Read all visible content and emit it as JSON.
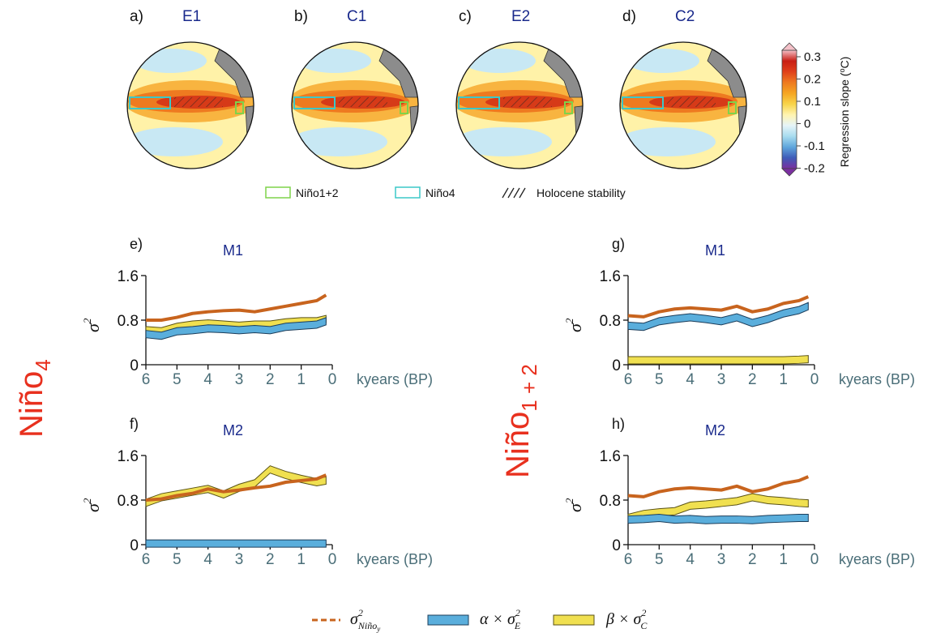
{
  "colors": {
    "niño": "#c8641e",
    "alpha_fill": "#5aaedc",
    "beta_fill": "#f0e050",
    "title_blue": "#1a2a8c",
    "region_label_red": "#e8301e",
    "axis_teal": "#4a6e78",
    "nino12_box": "#7fd34a",
    "nino4_box": "#3cc8c8"
  },
  "maps": [
    {
      "letter": "a)",
      "title": "E1"
    },
    {
      "letter": "b)",
      "title": "C1"
    },
    {
      "letter": "c)",
      "title": "E2"
    },
    {
      "letter": "d)",
      "title": "C2"
    }
  ],
  "colorbar": {
    "label": "Regression slope (",
    "label_unit": "C)",
    "label_sup": "o",
    "ticks": [
      "0.3",
      "0.2",
      "0.1",
      "0",
      "-0.1",
      "-0.2"
    ],
    "colors": [
      "#7b2fa0",
      "#3e5cb8",
      "#5fa6dc",
      "#a8dcef",
      "#e6f4f8",
      "#fff4b0",
      "#f8d44a",
      "#f5a623",
      "#ee7a20",
      "#e0401a",
      "#c81e14",
      "#f4c0c8"
    ]
  },
  "map_legend": {
    "nino12": "Niño1+2",
    "nino4": "Niño4",
    "hatch": "Holocene stability"
  },
  "row_labels": {
    "left_main": "Niño",
    "left_sub": "4",
    "right_main": "Niño",
    "right_sub": "1 + 2"
  },
  "xaxis_label": "kyears (BP)",
  "yaxis_label": "σ",
  "yaxis_sup": "2",
  "chart_data": [
    {
      "id": "e",
      "letter": "e)",
      "title": "M1",
      "type": "area",
      "x": [
        6.0,
        5.5,
        5.0,
        4.5,
        4.0,
        3.5,
        3.0,
        2.5,
        2.0,
        1.5,
        1.0,
        0.5,
        0.2
      ],
      "xlim": [
        6,
        0
      ],
      "ylim": [
        0,
        1.6
      ],
      "yticks": [
        0,
        0.8,
        1.6
      ],
      "yticklabels": [
        "0",
        "0.8",
        "1.6"
      ],
      "xticks": [
        6,
        5,
        4,
        3,
        2,
        1,
        0
      ],
      "xticklabels": [
        "6",
        "5",
        "4",
        "3",
        "2",
        "1",
        "0"
      ],
      "series": [
        {
          "key": "nino",
          "values": [
            0.8,
            0.8,
            0.85,
            0.92,
            0.95,
            0.97,
            0.98,
            0.95,
            1.0,
            1.05,
            1.1,
            1.15,
            1.25
          ]
        },
        {
          "key": "alpha",
          "values": [
            0.55,
            0.52,
            0.6,
            0.62,
            0.65,
            0.64,
            0.62,
            0.64,
            0.62,
            0.68,
            0.7,
            0.72,
            0.78
          ]
        },
        {
          "key": "beta",
          "values": [
            0.62,
            0.6,
            0.68,
            0.72,
            0.74,
            0.72,
            0.7,
            0.72,
            0.72,
            0.76,
            0.78,
            0.78,
            0.82
          ]
        }
      ]
    },
    {
      "id": "f",
      "letter": "f)",
      "title": "M2",
      "type": "area",
      "x": [
        6.0,
        5.5,
        5.0,
        4.5,
        4.0,
        3.5,
        3.0,
        2.5,
        2.0,
        1.5,
        1.0,
        0.5,
        0.2
      ],
      "xlim": [
        6,
        0
      ],
      "ylim": [
        0,
        1.6
      ],
      "yticks": [
        0,
        0.8,
        1.6
      ],
      "yticklabels": [
        "0",
        "0.8",
        "1.6"
      ],
      "xticks": [
        6,
        5,
        4,
        3,
        2,
        1,
        0
      ],
      "xticklabels": [
        "6",
        "5",
        "4",
        "3",
        "2",
        "1",
        "0"
      ],
      "series": [
        {
          "key": "nino",
          "values": [
            0.8,
            0.82,
            0.88,
            0.92,
            1.0,
            0.95,
            0.98,
            1.02,
            1.05,
            1.12,
            1.15,
            1.18,
            1.25
          ]
        },
        {
          "key": "alpha",
          "values": [
            0.02,
            0.02,
            0.02,
            0.02,
            0.02,
            0.02,
            0.02,
            0.02,
            0.02,
            0.02,
            0.02,
            0.02,
            0.02
          ]
        },
        {
          "key": "beta",
          "values": [
            0.75,
            0.85,
            0.9,
            0.95,
            1.0,
            0.9,
            1.02,
            1.1,
            1.35,
            1.25,
            1.18,
            1.12,
            1.15
          ]
        }
      ]
    },
    {
      "id": "g",
      "letter": "g)",
      "title": "M1",
      "type": "area",
      "x": [
        6.0,
        5.5,
        5.0,
        4.5,
        4.0,
        3.5,
        3.0,
        2.5,
        2.0,
        1.5,
        1.0,
        0.5,
        0.2
      ],
      "xlim": [
        6,
        0
      ],
      "ylim": [
        0,
        1.6
      ],
      "yticks": [
        0,
        0.8,
        1.6
      ],
      "yticklabels": [
        "0",
        "0.8",
        "1.6"
      ],
      "xticks": [
        6,
        5,
        4,
        3,
        2,
        1,
        0
      ],
      "xticklabels": [
        "6",
        "5",
        "4",
        "3",
        "2",
        "1",
        "0"
      ],
      "series": [
        {
          "key": "nino",
          "values": [
            0.88,
            0.86,
            0.95,
            1.0,
            1.02,
            1.0,
            0.98,
            1.05,
            0.95,
            1.0,
            1.1,
            1.15,
            1.22
          ]
        },
        {
          "key": "alpha",
          "values": [
            0.7,
            0.68,
            0.78,
            0.82,
            0.85,
            0.82,
            0.78,
            0.85,
            0.75,
            0.82,
            0.92,
            0.98,
            1.05
          ]
        },
        {
          "key": "beta",
          "values": [
            0.08,
            0.08,
            0.08,
            0.08,
            0.08,
            0.08,
            0.08,
            0.08,
            0.08,
            0.08,
            0.08,
            0.09,
            0.1
          ]
        }
      ]
    },
    {
      "id": "h",
      "letter": "h)",
      "title": "M2",
      "type": "area",
      "x": [
        6.0,
        5.5,
        5.0,
        4.5,
        4.0,
        3.5,
        3.0,
        2.5,
        2.0,
        1.5,
        1.0,
        0.5,
        0.2
      ],
      "xlim": [
        6,
        0
      ],
      "ylim": [
        0,
        1.6
      ],
      "yticks": [
        0,
        0.8,
        1.6
      ],
      "yticklabels": [
        "0",
        "0.8",
        "1.6"
      ],
      "xticks": [
        6,
        5,
        4,
        3,
        2,
        1,
        0
      ],
      "xticklabels": [
        "6",
        "5",
        "4",
        "3",
        "2",
        "1",
        "0"
      ],
      "series": [
        {
          "key": "nino",
          "values": [
            0.88,
            0.86,
            0.95,
            1.0,
            1.02,
            1.0,
            0.98,
            1.05,
            0.95,
            1.0,
            1.1,
            1.15,
            1.22
          ]
        },
        {
          "key": "alpha",
          "values": [
            0.45,
            0.46,
            0.48,
            0.45,
            0.46,
            0.44,
            0.45,
            0.45,
            0.44,
            0.46,
            0.47,
            0.48,
            0.48
          ]
        },
        {
          "key": "beta",
          "values": [
            0.48,
            0.55,
            0.58,
            0.6,
            0.7,
            0.72,
            0.75,
            0.78,
            0.85,
            0.8,
            0.78,
            0.75,
            0.74
          ]
        }
      ]
    }
  ],
  "bottom_legend": {
    "nino_sym": "σ",
    "nino_sup": "2",
    "nino_sub": "Niño",
    "nino_subsub": "y",
    "alpha_text": "α × σ",
    "alpha_sup": "2",
    "alpha_sub": "E",
    "beta_text": "β × σ",
    "beta_sup": "2",
    "beta_sub": "C"
  }
}
